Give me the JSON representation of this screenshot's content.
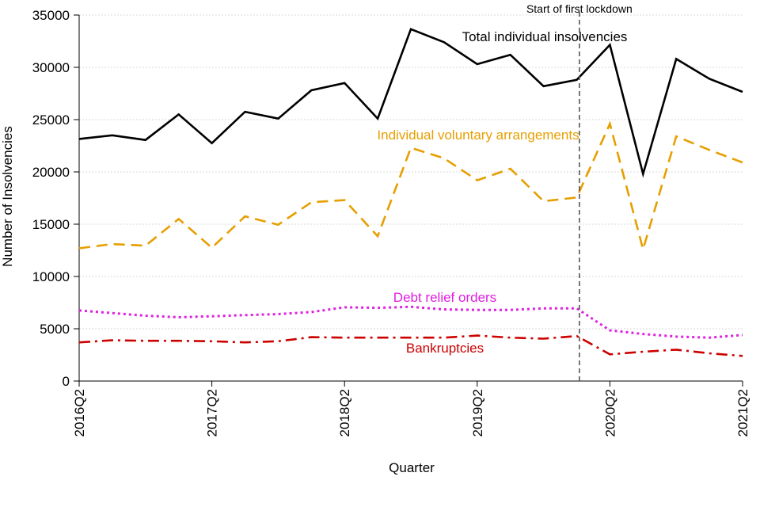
{
  "chart_data": {
    "type": "line",
    "title": "",
    "xlabel": "Quarter",
    "ylabel": "Number of Insolvencies",
    "ylim": [
      0,
      35000
    ],
    "yticks": [
      0,
      5000,
      10000,
      15000,
      20000,
      25000,
      30000,
      35000
    ],
    "grid": "horizontal dotted",
    "x": [
      "2016Q2",
      "2016Q3",
      "2016Q4",
      "2017Q1",
      "2017Q2",
      "2017Q3",
      "2017Q4",
      "2018Q1",
      "2018Q2",
      "2018Q3",
      "2018Q4",
      "2019Q1",
      "2019Q2",
      "2019Q3",
      "2019Q4",
      "2020Q1",
      "2020Q2",
      "2020Q3",
      "2020Q4",
      "2021Q1",
      "2021Q2"
    ],
    "xtick_labels": [
      "2016Q2",
      "2017Q2",
      "2018Q2",
      "2019Q2",
      "2020Q2",
      "2021Q2"
    ],
    "series": [
      {
        "name": "Total individual insolvencies",
        "color": "#000000",
        "style": "solid",
        "values": [
          23150,
          23500,
          23050,
          25500,
          22750,
          25750,
          25100,
          27800,
          28500,
          25100,
          33650,
          32400,
          30300,
          31200,
          28200,
          28800,
          32150,
          19800,
          30800,
          28900,
          27650
        ]
      },
      {
        "name": "Individual voluntary arrangements",
        "color": "#E69F00",
        "style": "dashed",
        "values": [
          12700,
          13100,
          12950,
          15500,
          12750,
          15750,
          14950,
          17100,
          17300,
          13850,
          22300,
          21300,
          19200,
          20300,
          17200,
          17550,
          24600,
          12600,
          23400,
          22100,
          20900
        ]
      },
      {
        "name": "Debt relief orders",
        "color": "#E020E0",
        "style": "dotted",
        "values": [
          6750,
          6500,
          6250,
          6100,
          6200,
          6300,
          6400,
          6600,
          7050,
          7000,
          7100,
          6850,
          6800,
          6800,
          6950,
          6950,
          4850,
          4500,
          4250,
          4150,
          4400
        ]
      },
      {
        "name": "Bankruptcies",
        "color": "#CC0000",
        "style": "dashdot",
        "values": [
          3700,
          3900,
          3850,
          3850,
          3800,
          3700,
          3800,
          4200,
          4150,
          4150,
          4150,
          4150,
          4350,
          4150,
          4050,
          4300,
          2550,
          2800,
          3000,
          2650,
          2400
        ]
      }
    ],
    "annotations": [
      {
        "text": "Start of first lockdown",
        "at_x_between": [
          "2020Q1",
          "2020Q2"
        ]
      }
    ]
  }
}
